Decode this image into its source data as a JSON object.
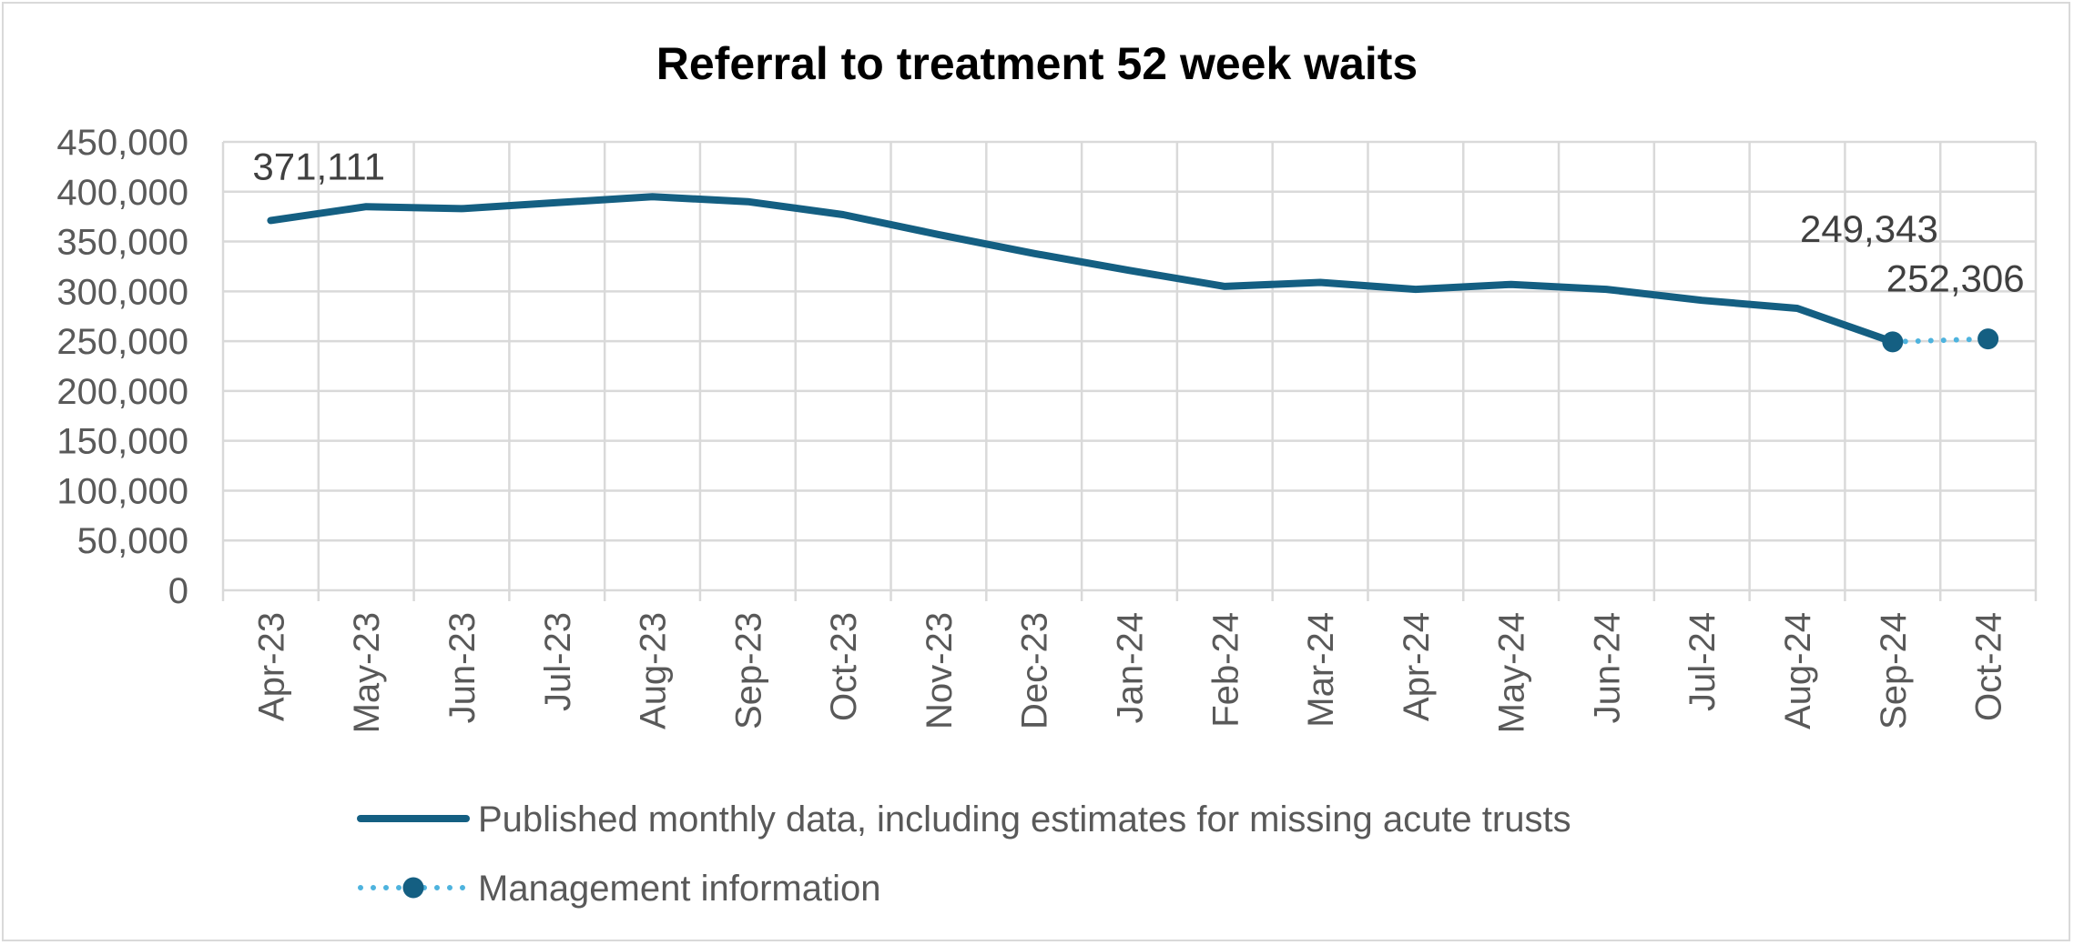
{
  "chart_data": {
    "type": "line",
    "title": "Referral to treatment 52 week waits",
    "xlabel": "",
    "ylabel": "",
    "ylim": [
      0,
      450000
    ],
    "yticks": [
      "0",
      "50,000",
      "100,000",
      "150,000",
      "200,000",
      "250,000",
      "300,000",
      "350,000",
      "400,000",
      "450,000"
    ],
    "categories": [
      "Apr-23",
      "May-23",
      "Jun-23",
      "Jul-23",
      "Aug-23",
      "Sep-23",
      "Oct-23",
      "Nov-23",
      "Dec-23",
      "Jan-24",
      "Feb-24",
      "Mar-24",
      "Apr-24",
      "May-24",
      "Jun-24",
      "Jul-24",
      "Aug-24",
      "Sep-24",
      "Oct-24"
    ],
    "grid": true,
    "legend_position": "bottom",
    "series": [
      {
        "name": "Published monthly data, including estimates for missing acute trusts",
        "style": "solid",
        "color": "#145f82",
        "values": [
          371111,
          385000,
          383000,
          389000,
          395000,
          390000,
          377000,
          357000,
          338000,
          321000,
          305000,
          309000,
          302000,
          307000,
          302000,
          291000,
          283000,
          249343,
          null
        ]
      },
      {
        "name": "Management information",
        "style": "dotted",
        "color": "#4eb3de",
        "marker_color": "#145f82",
        "values": [
          null,
          null,
          null,
          null,
          null,
          null,
          null,
          null,
          null,
          null,
          null,
          null,
          null,
          null,
          null,
          null,
          null,
          249343,
          252306
        ]
      }
    ],
    "annotations": [
      {
        "category": "Apr-23",
        "text": "371,111"
      },
      {
        "category": "Sep-24",
        "text": "249,343"
      },
      {
        "category": "Oct-24",
        "text": "252,306"
      }
    ]
  }
}
